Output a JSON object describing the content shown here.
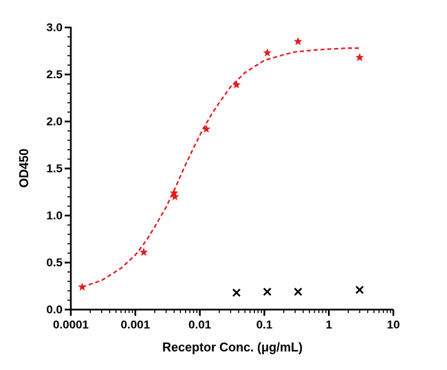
{
  "chart_data": {
    "type": "scatter",
    "x_label": "Receptor Conc. (μg/mL)",
    "y_label": "OD450",
    "xscale": "log",
    "xlim": [
      0.0001,
      10
    ],
    "xticks": [
      0.0001,
      0.001,
      0.01,
      0.1,
      1,
      10
    ],
    "ylim": [
      0,
      3
    ],
    "yticks": [
      {
        "value": 0,
        "label": "0.0"
      },
      {
        "value": 0.5,
        "label": "0.5"
      },
      {
        "value": 1,
        "label": "1.0"
      },
      {
        "value": 1.5,
        "label": "1.5"
      },
      {
        "value": 2,
        "label": "2.0"
      },
      {
        "value": 2.5,
        "label": "2.5"
      },
      {
        "value": 3,
        "label": "3.0"
      }
    ],
    "series": [
      {
        "color": "#e31a1c",
        "marker": "star",
        "x": [
          0.00015,
          0.00135,
          0.004,
          0.0041,
          0.0126,
          0.037,
          0.111,
          0.333,
          3.0
        ],
        "values": [
          0.24,
          0.61,
          1.24,
          1.2,
          1.92,
          2.39,
          2.73,
          2.85,
          2.68
        ]
      },
      {
        "color": "#e31a1c",
        "line": "dashed",
        "x": [
          0.00015,
          0.0003,
          0.0006,
          0.001,
          0.0015,
          0.002,
          0.003,
          0.004,
          0.006,
          0.008,
          0.011,
          0.015,
          0.02,
          0.03,
          0.05,
          0.1,
          0.2,
          0.3,
          0.6,
          1,
          2,
          3
        ],
        "values": [
          0.24,
          0.31,
          0.44,
          0.58,
          0.74,
          0.88,
          1.09,
          1.27,
          1.54,
          1.72,
          1.91,
          2.07,
          2.2,
          2.37,
          2.52,
          2.65,
          2.71,
          2.74,
          2.76,
          2.77,
          2.78,
          2.78
        ]
      },
      {
        "color": "#000000",
        "marker": "x",
        "x": [
          0.037,
          0.111,
          0.333,
          3.0
        ],
        "values": [
          0.18,
          0.19,
          0.19,
          0.21
        ]
      }
    ]
  }
}
